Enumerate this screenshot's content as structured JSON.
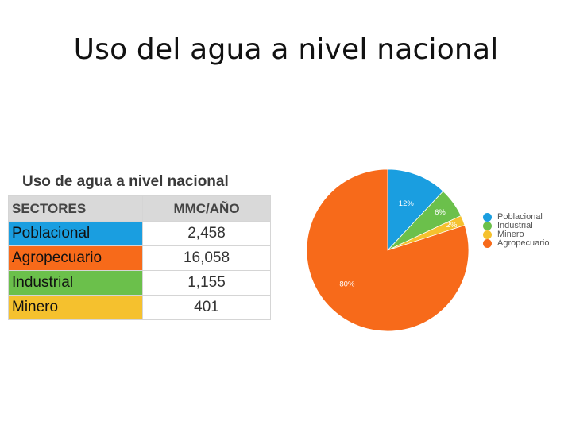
{
  "slide": {
    "title": "Uso del agua a nivel nacional"
  },
  "table": {
    "title": "Uso de agua a nivel nacional",
    "headers": [
      "SECTORES",
      "MMC/AÑO"
    ],
    "rows": [
      {
        "name": "Poblacional",
        "value": "2,458",
        "color": "#1a9ee0"
      },
      {
        "name": "Agropecuario",
        "value": "16,058",
        "color": "#f76a1a"
      },
      {
        "name": "Industrial",
        "value": "1,155",
        "color": "#6bc04b"
      },
      {
        "name": "Minero",
        "value": "401",
        "color": "#f5c12e"
      }
    ]
  },
  "chart_data": {
    "type": "pie",
    "categories": [
      "Poblacional",
      "Industrial",
      "Minero",
      "Agropecuario"
    ],
    "values": [
      12,
      6,
      2,
      80
    ],
    "value_labels": [
      "12%",
      "6%",
      "2%",
      "80%"
    ],
    "colors": [
      "#1a9ee0",
      "#6bc04b",
      "#f5c12e",
      "#f76a1a"
    ],
    "legend": "right"
  }
}
